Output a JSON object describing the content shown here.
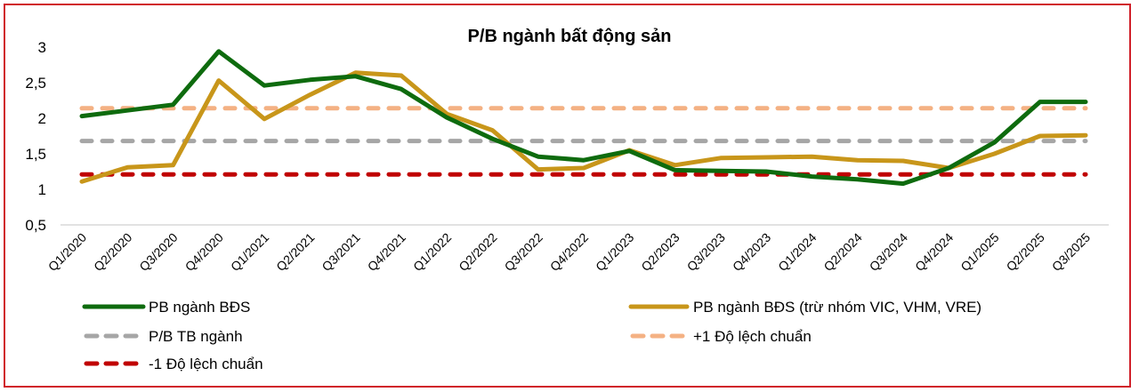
{
  "chart_data": {
    "type": "line",
    "title": "P/B ngành bất động sản",
    "xlabel": "",
    "ylabel": "",
    "ylim": [
      0.5,
      3
    ],
    "yticks": [
      "3",
      "2,5",
      "2",
      "1,5",
      "1",
      "0,5"
    ],
    "ytick_values": [
      3,
      2.5,
      2,
      1.5,
      1,
      0.5
    ],
    "grid": false,
    "legend_position": "bottom",
    "categories": [
      "Q1/2020",
      "Q2/2020",
      "Q3/2020",
      "Q4/2020",
      "Q1/2021",
      "Q2/2021",
      "Q3/2021",
      "Q4/2021",
      "Q1/2022",
      "Q2/2022",
      "Q3/2022",
      "Q4/2022",
      "Q1/2023",
      "Q2/2023",
      "Q3/2023",
      "Q4/2023",
      "Q1/2024",
      "Q2/2024",
      "Q3/2024",
      "Q4/2024",
      "Q1/2025",
      "Q2/2025",
      "Q3/2025"
    ],
    "series": [
      {
        "name": "PB ngành BĐS",
        "color": "#0e6b0e",
        "style": "solid",
        "values": [
          2.03,
          2.11,
          2.19,
          2.94,
          2.46,
          2.54,
          2.59,
          2.41,
          2.01,
          1.71,
          1.46,
          1.41,
          1.54,
          1.27,
          1.26,
          1.25,
          1.18,
          1.14,
          1.08,
          1.3,
          1.66,
          2.23,
          2.23
        ]
      },
      {
        "name": "PB ngành BĐS (trừ nhóm VIC, VHM, VRE)",
        "color": "#c8961a",
        "style": "solid",
        "values": [
          1.11,
          1.31,
          1.34,
          2.53,
          1.99,
          2.33,
          2.64,
          2.6,
          2.06,
          1.83,
          1.28,
          1.3,
          1.55,
          1.34,
          1.44,
          1.45,
          1.46,
          1.41,
          1.4,
          1.3,
          1.5,
          1.75,
          1.76
        ]
      },
      {
        "name": "P/B TB ngành",
        "color": "#a6a6a6",
        "style": "dashed",
        "values": [
          1.68,
          1.68,
          1.68,
          1.68,
          1.68,
          1.68,
          1.68,
          1.68,
          1.68,
          1.68,
          1.68,
          1.68,
          1.68,
          1.68,
          1.68,
          1.68,
          1.68,
          1.68,
          1.68,
          1.68,
          1.68,
          1.68,
          1.68
        ]
      },
      {
        "name": "+1 Độ lệch chuẩn",
        "color": "#f4b183",
        "style": "dashed",
        "values": [
          2.14,
          2.14,
          2.14,
          2.14,
          2.14,
          2.14,
          2.14,
          2.14,
          2.14,
          2.14,
          2.14,
          2.14,
          2.14,
          2.14,
          2.14,
          2.14,
          2.14,
          2.14,
          2.14,
          2.14,
          2.14,
          2.14,
          2.14
        ]
      },
      {
        "name": "-1 Độ lệch chuẩn",
        "color": "#c00000",
        "style": "dashed",
        "values": [
          1.21,
          1.21,
          1.21,
          1.21,
          1.21,
          1.21,
          1.21,
          1.21,
          1.21,
          1.21,
          1.21,
          1.21,
          1.21,
          1.21,
          1.21,
          1.21,
          1.21,
          1.21,
          1.21,
          1.21,
          1.21,
          1.21,
          1.21
        ]
      }
    ]
  },
  "legend": {
    "items": [
      {
        "label": "PB ngành BĐS"
      },
      {
        "label": "PB ngành BĐS (trừ nhóm VIC, VHM, VRE)"
      },
      {
        "label": "P/B TB ngành"
      },
      {
        "label": "+1 Độ lệch chuẩn"
      },
      {
        "label": "-1 Độ lệch chuẩn"
      }
    ]
  },
  "colors": {
    "frame_border": "#d0202a",
    "axis_line": "#d9d9d9"
  }
}
